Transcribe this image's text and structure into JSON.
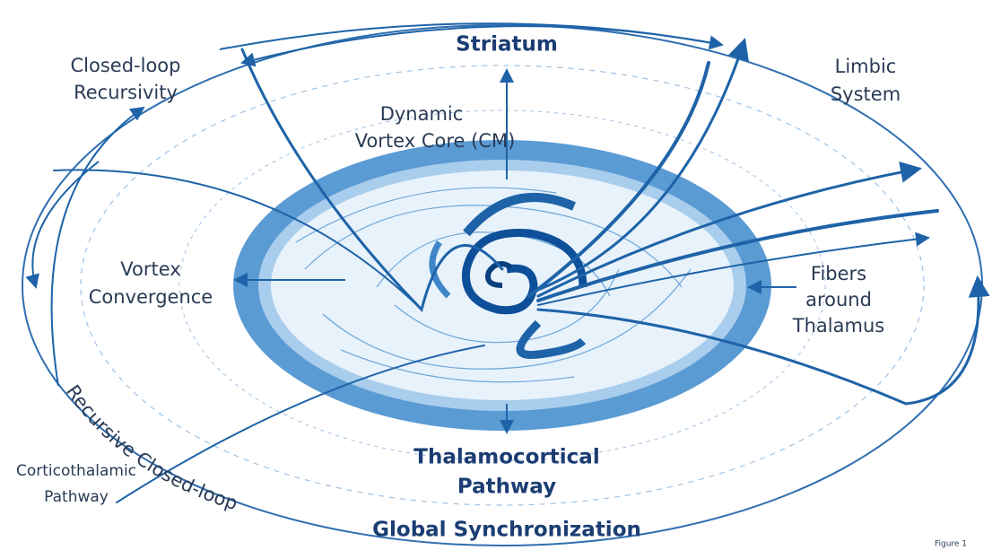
{
  "labels": {
    "striatum": "Striatum",
    "closed_loop": [
      "Closed-loop",
      "Recursivity"
    ],
    "limbic": [
      "Limbic",
      "System"
    ],
    "core": [
      "Dynamic",
      "Vortex Core (CM)"
    ],
    "convergence": [
      "Vortex",
      "Convergence"
    ],
    "fibers": [
      "Fibers",
      "around",
      "Thalamus"
    ],
    "thalamocortical": [
      "Thalamocortical",
      "Pathway"
    ],
    "recursive": "Recursive Closed-loop",
    "corticothalamic": [
      "Corticothalamic",
      "Pathway"
    ],
    "global": "Global Synchronization",
    "figure": "Figure 1"
  }
}
